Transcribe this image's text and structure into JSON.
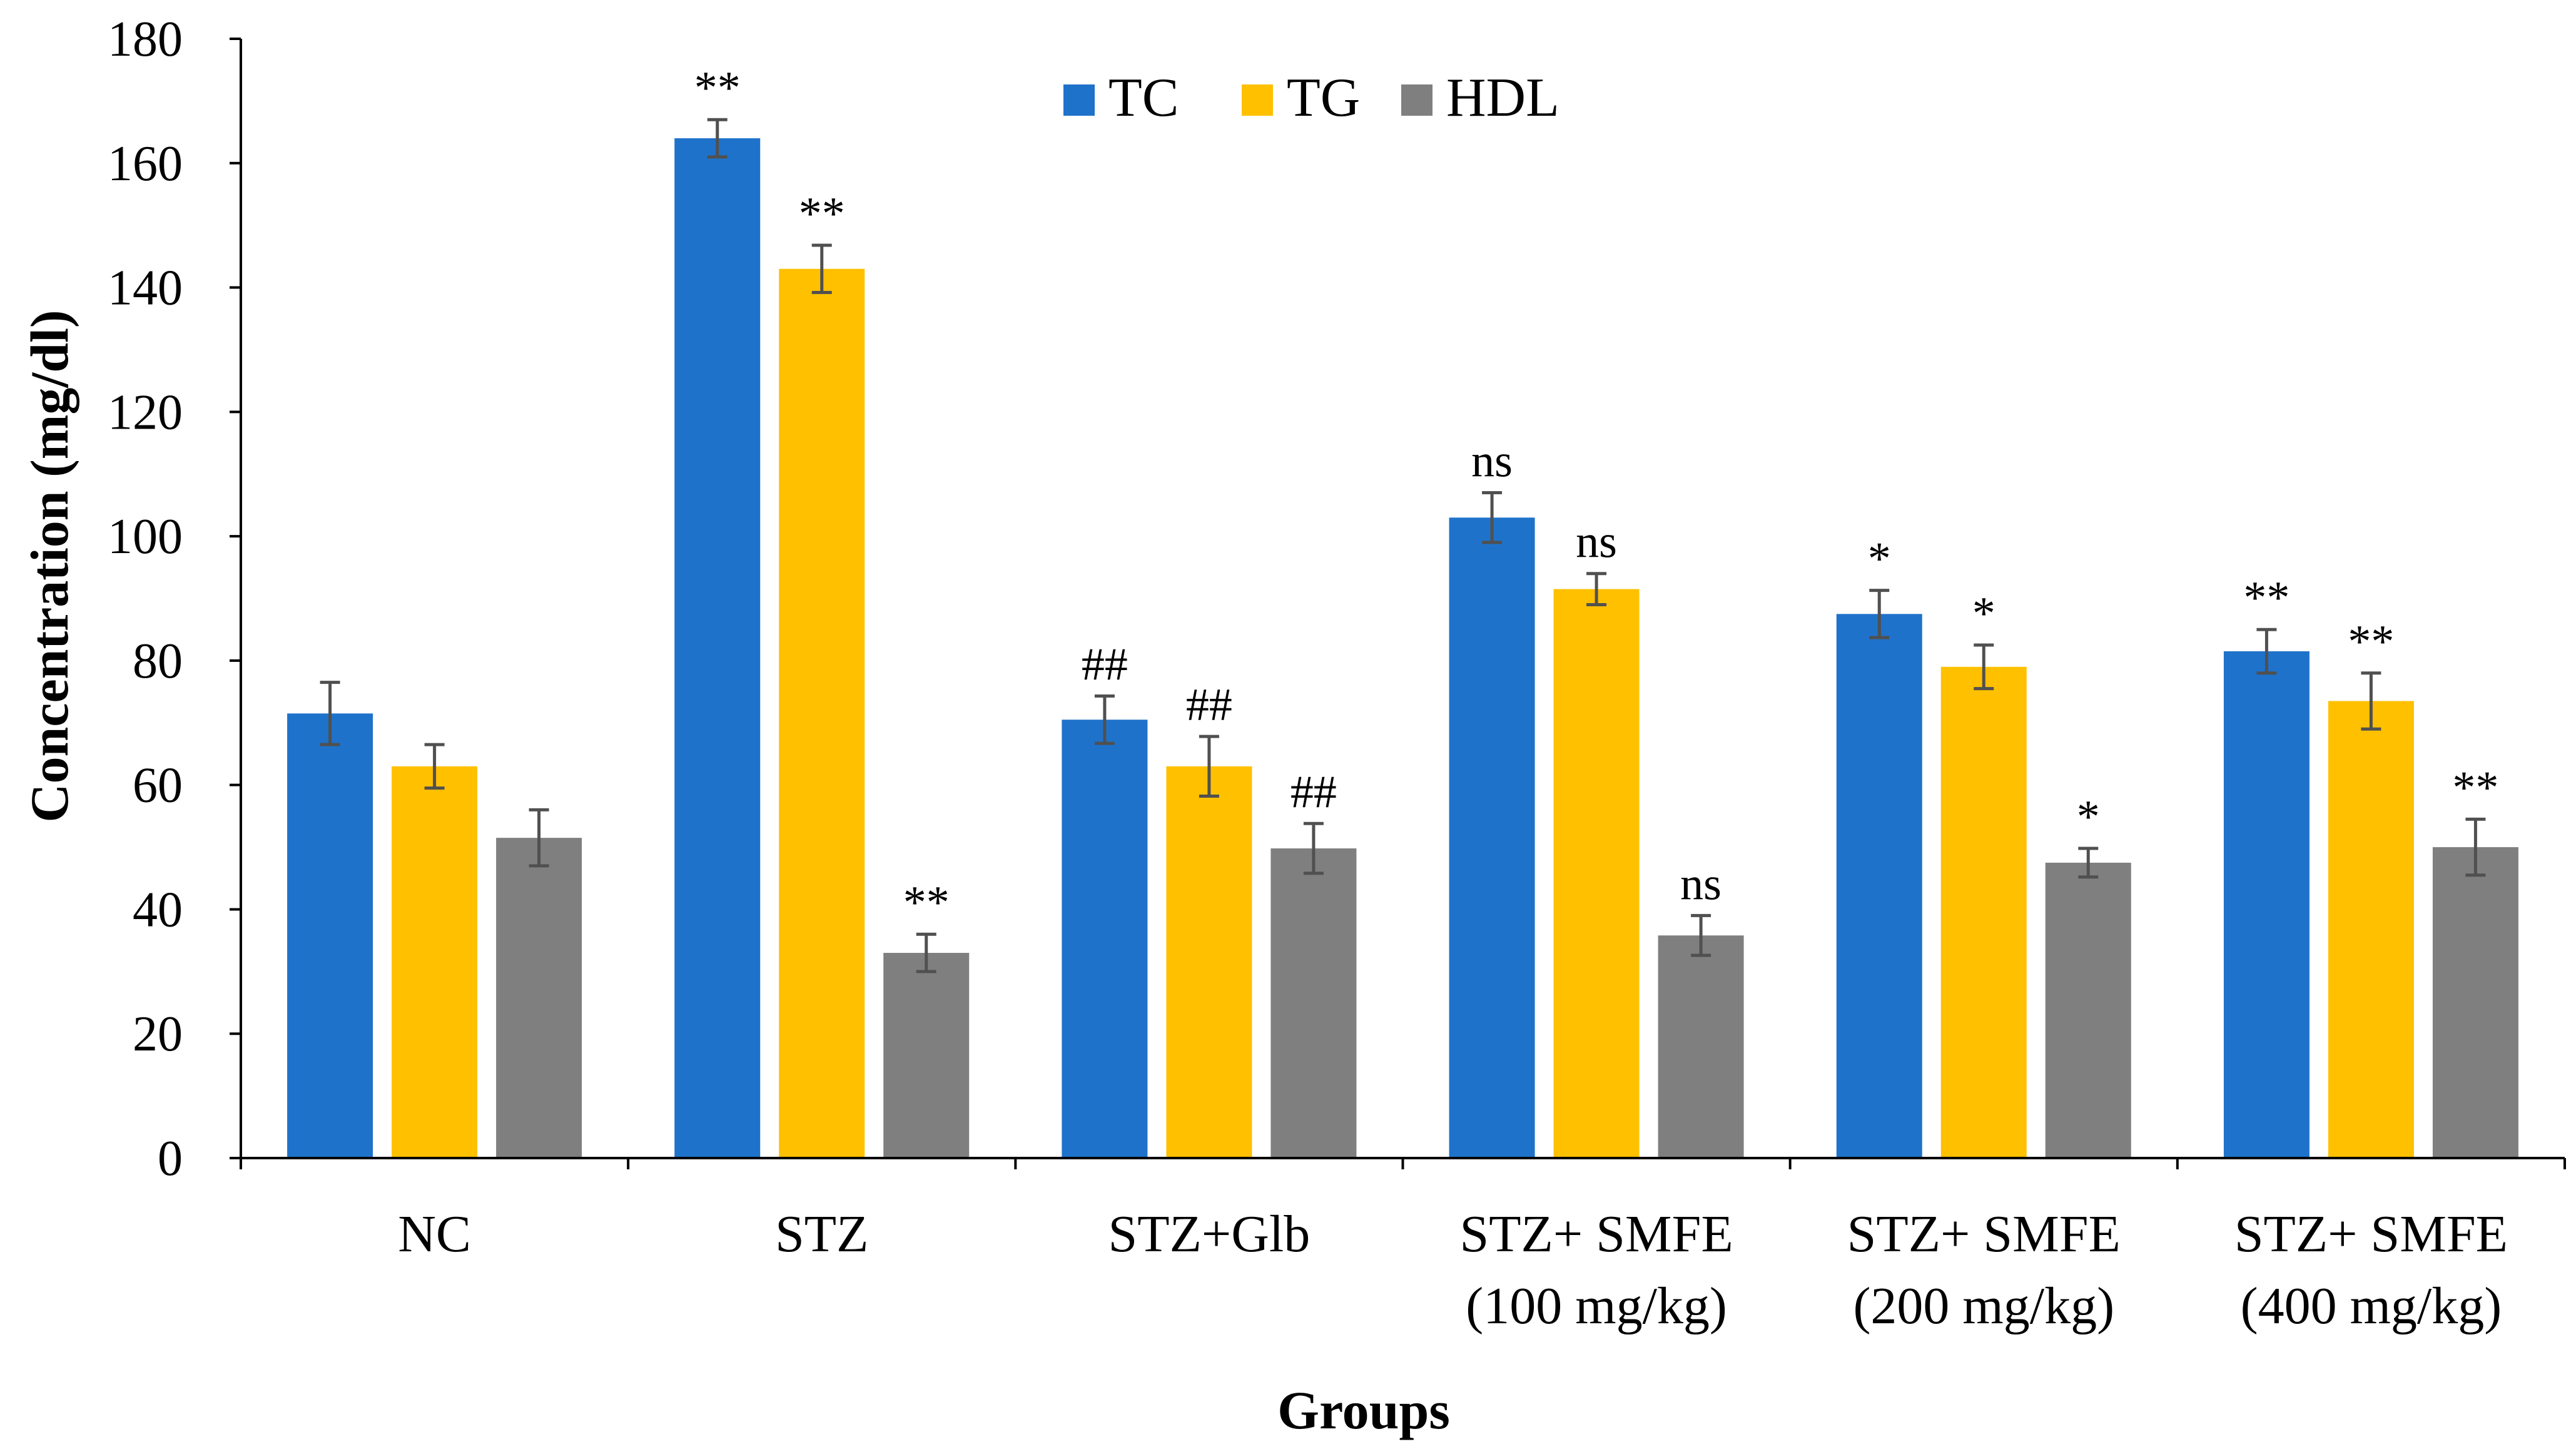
{
  "chart_data": {
    "type": "bar",
    "title": "",
    "xlabel": "Groups",
    "ylabel": "Concentration (mg/dl)",
    "ylim": [
      0,
      180
    ],
    "yticks": [
      0,
      20,
      40,
      60,
      80,
      100,
      120,
      140,
      160,
      180
    ],
    "grid": false,
    "legend_position": "top-center",
    "categories": [
      [
        "NC"
      ],
      [
        "STZ"
      ],
      [
        "STZ+Glb"
      ],
      [
        "STZ+ SMFE",
        "(100 mg/kg)"
      ],
      [
        "STZ+ SMFE",
        "(200 mg/kg)"
      ],
      [
        "STZ+ SMFE",
        "(400 mg/kg)"
      ]
    ],
    "series": [
      {
        "name": "TC",
        "color": "#1F72CA",
        "values": [
          71.5,
          164,
          70.5,
          103,
          87.5,
          81.5
        ],
        "errors": [
          5,
          3,
          3.8,
          4,
          3.8,
          3.5
        ],
        "annotations": [
          "",
          "**",
          "##",
          "ns",
          "*",
          "**"
        ]
      },
      {
        "name": "TG",
        "color": "#FFC000",
        "values": [
          63,
          143,
          63,
          91.5,
          79,
          73.5
        ],
        "errors": [
          3.5,
          3.8,
          4.8,
          2.5,
          3.5,
          4.5
        ],
        "annotations": [
          "",
          "**",
          "##",
          "ns",
          "*",
          "**"
        ]
      },
      {
        "name": "HDL",
        "color": "#7F7F7F",
        "values": [
          51.5,
          33,
          49.8,
          35.8,
          47.5,
          50
        ],
        "errors": [
          4.5,
          3,
          4,
          3.2,
          2.3,
          4.5
        ],
        "annotations": [
          "",
          "**",
          "##",
          "ns",
          "*",
          "**"
        ]
      }
    ],
    "error_bar_color": "#505050"
  }
}
